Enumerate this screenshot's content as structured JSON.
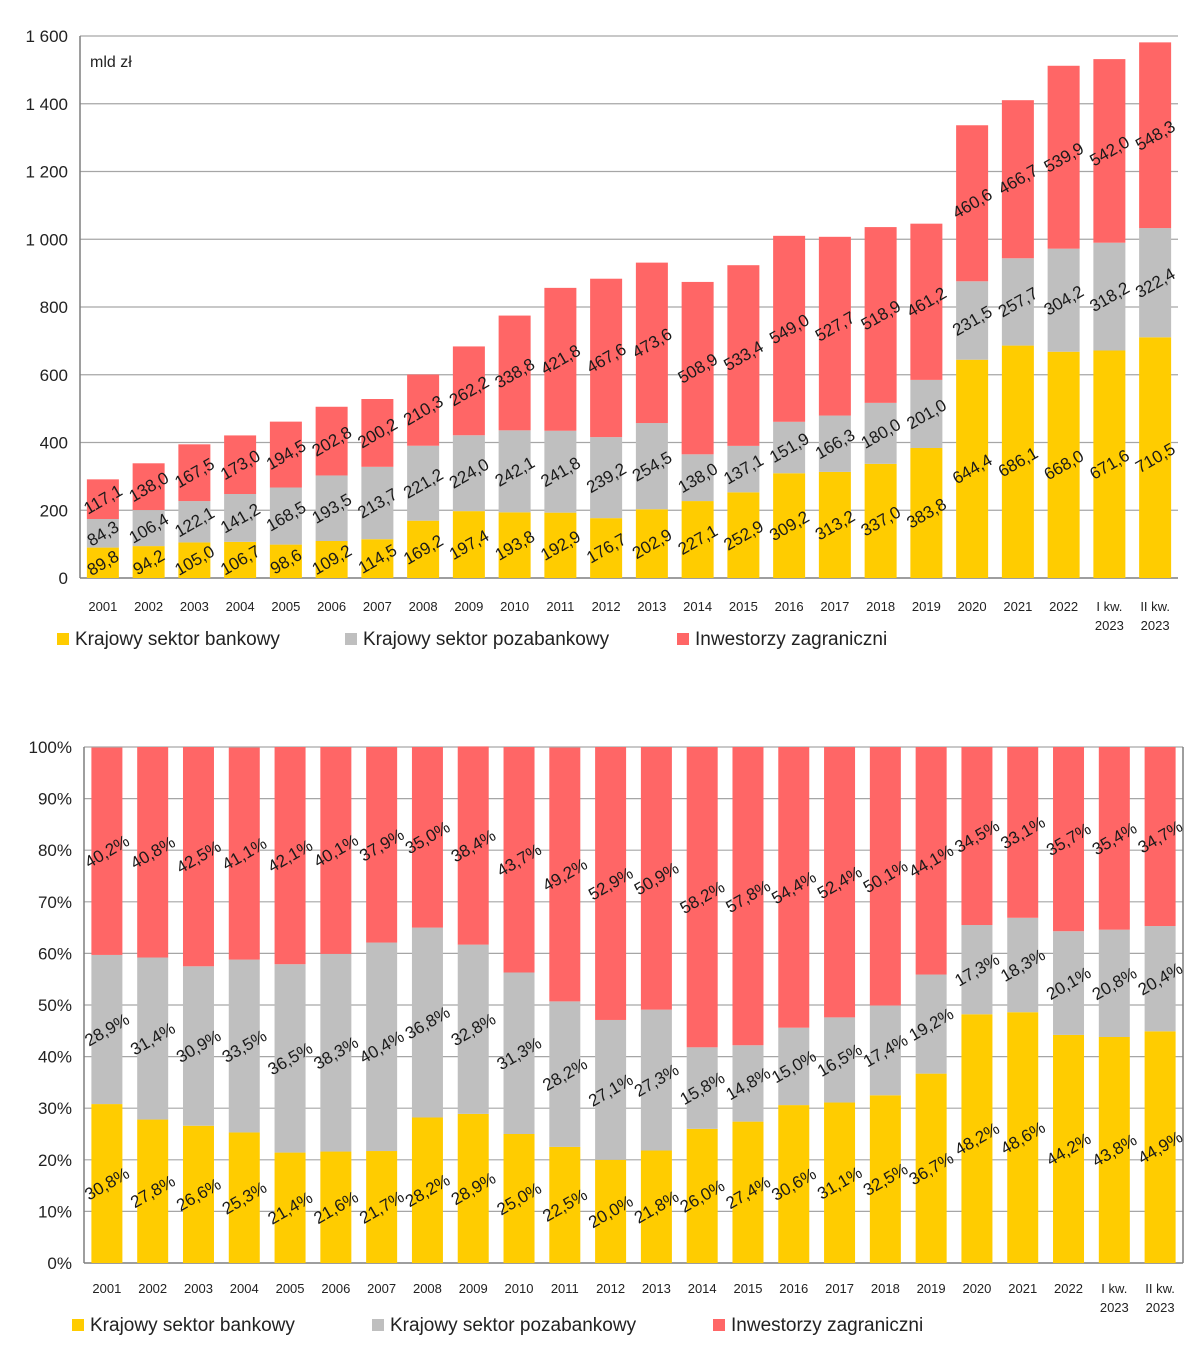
{
  "colors": {
    "bank": "#FFCC00",
    "nonbank": "#BFBFBF",
    "foreign": "#FF6666",
    "grid": "#A6A6A6",
    "axis": "#7F7F7F"
  },
  "chart_data": [
    {
      "type": "bar",
      "stacked": true,
      "unit_label": "mld zł",
      "ylim": [
        0,
        1600
      ],
      "yticks": [
        0,
        200,
        400,
        600,
        800,
        1000,
        1200,
        1400,
        1600
      ],
      "ytick_labels": [
        "0",
        "200",
        "400",
        "600",
        "800",
        "1 000",
        "1 200",
        "1 400",
        "1 600"
      ],
      "grid": true,
      "legend_position": "bottom",
      "categories": [
        "2001",
        "2002",
        "2003",
        "2004",
        "2005",
        "2006",
        "2007",
        "2008",
        "2009",
        "2010",
        "2011",
        "2012",
        "2013",
        "2014",
        "2015",
        "2016",
        "2017",
        "2018",
        "2019",
        "2020",
        "2021",
        "2022",
        "I kw.|2023",
        "II kw.|2023"
      ],
      "series": [
        {
          "name": "Krajowy sektor bankowy",
          "color_key": "bank",
          "values": [
            89.8,
            94.2,
            105.0,
            106.7,
            98.6,
            109.2,
            114.5,
            169.2,
            197.4,
            193.8,
            192.9,
            176.7,
            202.9,
            227.1,
            252.9,
            309.2,
            313.2,
            337.0,
            383.8,
            644.4,
            686.1,
            668.0,
            671.6,
            710.5
          ],
          "labels": [
            "89,8",
            "94,2",
            "105,0",
            "106,7",
            "98,6",
            "109,2",
            "114,5",
            "169,2",
            "197,4",
            "193,8",
            "192,9",
            "176,7",
            "202,9",
            "227,1",
            "252,9",
            "309,2",
            "313,2",
            "337,0",
            "383,8",
            "644,4",
            "686,1",
            "668,0",
            "671,6",
            "710,5"
          ]
        },
        {
          "name": "Krajowy sektor pozabankowy",
          "color_key": "nonbank",
          "values": [
            84.3,
            106.4,
            122.1,
            141.2,
            168.5,
            193.5,
            213.7,
            221.2,
            224.0,
            242.1,
            241.8,
            239.2,
            254.5,
            138.0,
            137.1,
            151.9,
            166.3,
            180.0,
            201.0,
            231.5,
            257.7,
            304.2,
            318.2,
            322.4
          ],
          "labels": [
            "84,3",
            "106,4",
            "122,1",
            "141,2",
            "168,5",
            "193,5",
            "213,7",
            "221,2",
            "224,0",
            "242,1",
            "241,8",
            "239,2",
            "254,5",
            "138,0",
            "137,1",
            "151,9",
            "166,3",
            "180,0",
            "201,0",
            "231,5",
            "257,7",
            "304,2",
            "318,2",
            "322,4"
          ]
        },
        {
          "name": "Inwestorzy zagraniczni",
          "color_key": "foreign",
          "values": [
            117.1,
            138.0,
            167.5,
            173.0,
            194.5,
            202.8,
            200.2,
            210.3,
            262.2,
            338.8,
            421.8,
            467.6,
            473.6,
            508.9,
            533.4,
            549.0,
            527.7,
            518.9,
            461.2,
            460.6,
            466.7,
            539.9,
            542.0,
            548.3
          ],
          "labels": [
            "117,1",
            "138,0",
            "167,5",
            "173,0",
            "194,5",
            "202,8",
            "200,2",
            "210,3",
            "262,2",
            "338,8",
            "421,8",
            "467,6",
            "473,6",
            "508,9",
            "533,4",
            "549,0",
            "527,7",
            "518,9",
            "461,2",
            "460,6",
            "466,7",
            "539,9",
            "542,0",
            "548,3"
          ]
        }
      ]
    },
    {
      "type": "bar",
      "stacked": true,
      "percent": true,
      "ylim": [
        0,
        100
      ],
      "yticks": [
        0,
        10,
        20,
        30,
        40,
        50,
        60,
        70,
        80,
        90,
        100
      ],
      "ytick_labels": [
        "0%",
        "10%",
        "20%",
        "30%",
        "40%",
        "50%",
        "60%",
        "70%",
        "80%",
        "90%",
        "100%"
      ],
      "grid": true,
      "legend_position": "bottom",
      "categories": [
        "2001",
        "2002",
        "2003",
        "2004",
        "2005",
        "2006",
        "2007",
        "2008",
        "2009",
        "2010",
        "2011",
        "2012",
        "2013",
        "2014",
        "2015",
        "2016",
        "2017",
        "2018",
        "2019",
        "2020",
        "2021",
        "2022",
        "I kw.|2023",
        "II kw.|2023"
      ],
      "series": [
        {
          "name": "Krajowy sektor bankowy",
          "color_key": "bank",
          "values": [
            30.8,
            27.8,
            26.6,
            25.3,
            21.4,
            21.6,
            21.7,
            28.2,
            28.9,
            25.0,
            22.5,
            20.0,
            21.8,
            26.0,
            27.4,
            30.6,
            31.1,
            32.5,
            36.7,
            48.2,
            48.6,
            44.2,
            43.8,
            44.9
          ],
          "labels": [
            "30,8%",
            "27,8%",
            "26,6%",
            "25,3%",
            "21,4%",
            "21,6%",
            "21,7%",
            "28,2%",
            "28,9%",
            "25,0%",
            "22,5%",
            "20,0%",
            "21,8%",
            "26,0%",
            "27,4%",
            "30,6%",
            "31,1%",
            "32,5%",
            "36,7%",
            "48,2%",
            "48,6%",
            "44,2%",
            "43,8%",
            "44,9%"
          ]
        },
        {
          "name": "Krajowy sektor pozabankowy",
          "color_key": "nonbank",
          "values": [
            28.9,
            31.4,
            30.9,
            33.5,
            36.5,
            38.3,
            40.4,
            36.8,
            32.8,
            31.3,
            28.2,
            27.1,
            27.3,
            15.8,
            14.8,
            15.0,
            16.5,
            17.4,
            19.2,
            17.3,
            18.3,
            20.1,
            20.8,
            20.4
          ],
          "labels": [
            "28,9%",
            "31,4%",
            "30,9%",
            "33,5%",
            "36,5%",
            "38,3%",
            "40,4%",
            "36,8%",
            "32,8%",
            "31,3%",
            "28,2%",
            "27,1%",
            "27,3%",
            "15,8%",
            "14,8%",
            "15,0%",
            "16,5%",
            "17,4%",
            "19,2%",
            "17,3%",
            "18,3%",
            "20,1%",
            "20,8%",
            "20,4%"
          ]
        },
        {
          "name": "Inwestorzy zagraniczni",
          "color_key": "foreign",
          "values": [
            40.2,
            40.8,
            42.5,
            41.1,
            42.1,
            40.1,
            37.9,
            35.0,
            38.4,
            43.7,
            49.2,
            52.9,
            50.9,
            58.2,
            57.8,
            54.4,
            52.4,
            50.1,
            44.1,
            34.5,
            33.1,
            35.7,
            35.4,
            34.7
          ],
          "labels": [
            "40,2%",
            "40,8%",
            "42,5%",
            "41,1%",
            "42,1%",
            "40,1%",
            "37,9%",
            "35,0%",
            "38,4%",
            "43,7%",
            "49,2%",
            "52,9%",
            "50,9%",
            "58,2%",
            "57,8%",
            "54,4%",
            "52,4%",
            "50,1%",
            "44,1%",
            "34,5%",
            "33,1%",
            "35,7%",
            "35,4%",
            "34,7%"
          ]
        }
      ]
    }
  ]
}
